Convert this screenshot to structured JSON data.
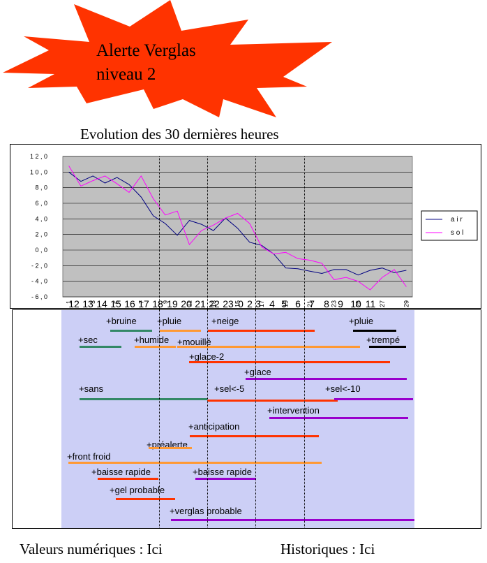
{
  "alert": {
    "line1": "Alerte Verglas",
    "line2": "niveau 2",
    "burst_color": "#ff3300"
  },
  "heading": "Evolution des 30 dernières heures",
  "chart_data": {
    "type": "line",
    "x": [
      1,
      2,
      3,
      4,
      5,
      6,
      7,
      8,
      9,
      10,
      11,
      12,
      13,
      14,
      15,
      16,
      17,
      18,
      19,
      20,
      21,
      22,
      23,
      24,
      25,
      26,
      27,
      28,
      29
    ],
    "x_tick_labels": [
      "1",
      "3",
      "5",
      "7",
      "9",
      "11",
      "13",
      "15",
      "17",
      "19",
      "21",
      "23",
      "25",
      "27",
      "29"
    ],
    "y_tick_labels": [
      "1 2 , 0",
      "1 0 , 0",
      "8 , 0",
      "6 , 0",
      "4 , 0",
      "2 , 0",
      "0 , 0",
      "- 2 , 0",
      "- 4 , 0",
      "- 6 , 0"
    ],
    "ylim": [
      -6,
      12
    ],
    "plot_background": "#c0c0c0",
    "grid": true,
    "legend_position": "right",
    "series": [
      {
        "name": "a i r",
        "color": "#000080",
        "values": [
          10.0,
          8.8,
          9.5,
          8.6,
          9.3,
          8.4,
          6.8,
          4.4,
          3.4,
          1.9,
          3.8,
          3.3,
          2.5,
          4.1,
          2.8,
          1.0,
          0.6,
          -0.5,
          -2.3,
          -2.4,
          -2.7,
          -3.0,
          -2.5,
          -2.5,
          -3.2,
          -2.6,
          -2.3,
          -2.9,
          -2.6
        ]
      },
      {
        "name": "s o l",
        "color": "#ff00ff",
        "values": [
          10.8,
          8.2,
          8.9,
          9.5,
          8.5,
          7.4,
          9.5,
          6.6,
          4.5,
          5.0,
          0.7,
          2.5,
          3.2,
          4.1,
          4.7,
          3.4,
          0.4,
          -0.5,
          -0.3,
          -1.1,
          -1.3,
          -1.7,
          -3.8,
          -3.5,
          -4.0,
          -5.1,
          -3.5,
          -2.5,
          -4.7
        ]
      }
    ]
  },
  "hours_labels": [
    "12",
    "13",
    "14",
    "15",
    "16",
    "17",
    "18",
    "19",
    "20",
    "21",
    "22",
    "23",
    "0",
    "2",
    "3",
    "4",
    "5",
    "6",
    "7",
    "8",
    "9",
    "10",
    "11"
  ],
  "timeline": {
    "background": "#cccff6",
    "colors": {
      "green": "#338866",
      "orange": "#ff9933",
      "red": "#ff3300",
      "purple": "#9900cc",
      "black": "#000000"
    },
    "states": [
      {
        "label": "+bruine",
        "color": "green"
      },
      {
        "label": "+pluie",
        "color": "orange"
      },
      {
        "label": "+neige",
        "color": "red"
      },
      {
        "label": "+pluie",
        "color": "black"
      },
      {
        "label": "+sec",
        "color": "green"
      },
      {
        "label": "+humide",
        "color": "orange"
      },
      {
        "label": "+mouillé",
        "color": "orange"
      },
      {
        "label": "+trempé",
        "color": "black"
      },
      {
        "label": "+glace-2",
        "color": "red"
      },
      {
        "label": "+glace",
        "color": "purple"
      },
      {
        "label": "+sans",
        "color": "green"
      },
      {
        "label": "+sel<-5",
        "color": "red"
      },
      {
        "label": "+sel<-10",
        "color": "purple"
      },
      {
        "label": "+intervention",
        "color": "purple"
      },
      {
        "label": "+anticipation",
        "color": "red"
      },
      {
        "label": "+préalerte",
        "color": "orange"
      },
      {
        "label": "+front froid",
        "color": "orange"
      },
      {
        "label": "+baisse rapide",
        "color": "red"
      },
      {
        "label": "+baisse rapide",
        "color": "purple"
      },
      {
        "label": "+gel probable",
        "color": "red"
      },
      {
        "label": "+verglas probable",
        "color": "purple"
      }
    ]
  },
  "footer": {
    "numeric": "Valeurs numériques : Ici",
    "history": "Historiques : Ici"
  }
}
